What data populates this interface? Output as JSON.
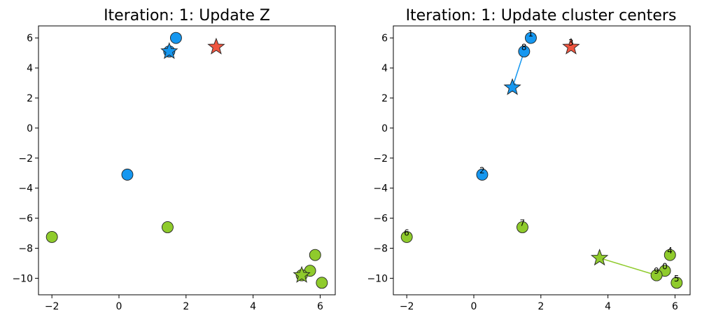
{
  "colors": {
    "blue": "#1597f0",
    "red": "#f0553f",
    "green": "#8fcb2c",
    "edge": "#222222"
  },
  "chart_data": [
    {
      "type": "scatter",
      "title": "Iteration: 1: Update Z",
      "xlim": [
        -2.4,
        6.45
      ],
      "ylim": [
        -11.1,
        6.8
      ],
      "xticks": [
        -2,
        0,
        2,
        4,
        6
      ],
      "yticks": [
        6,
        4,
        2,
        0,
        -2,
        -4,
        -6,
        -8,
        -10
      ],
      "points": [
        {
          "x": 1.7,
          "y": 6.0,
          "cluster": "blue"
        },
        {
          "x": 1.5,
          "y": 5.1,
          "cluster": "blue"
        },
        {
          "x": 0.25,
          "y": -3.1,
          "cluster": "blue"
        },
        {
          "x": 1.45,
          "y": -6.6,
          "cluster": "green"
        },
        {
          "x": -2.0,
          "y": -7.25,
          "cluster": "green"
        },
        {
          "x": 5.85,
          "y": -8.45,
          "cluster": "green"
        },
        {
          "x": 5.7,
          "y": -9.5,
          "cluster": "green"
        },
        {
          "x": 5.45,
          "y": -9.8,
          "cluster": "green"
        },
        {
          "x": 6.05,
          "y": -10.3,
          "cluster": "green"
        }
      ],
      "centers": [
        {
          "x": 1.5,
          "y": 5.1,
          "cluster": "blue"
        },
        {
          "x": 2.9,
          "y": 5.4,
          "cluster": "red"
        },
        {
          "x": 5.45,
          "y": -9.8,
          "cluster": "green"
        }
      ],
      "arrows": []
    },
    {
      "type": "scatter",
      "title": "Iteration: 1: Update cluster centers",
      "xlim": [
        -2.4,
        6.45
      ],
      "ylim": [
        -11.1,
        6.8
      ],
      "xticks": [
        -2,
        0,
        2,
        4,
        6
      ],
      "yticks": [
        6,
        4,
        2,
        0,
        -2,
        -4,
        -6,
        -8,
        -10
      ],
      "points": [
        {
          "x": 1.7,
          "y": 6.0,
          "cluster": "blue",
          "label": "1"
        },
        {
          "x": 1.5,
          "y": 5.1,
          "cluster": "blue",
          "label": "8"
        },
        {
          "x": 0.25,
          "y": -3.1,
          "cluster": "blue",
          "label": "2"
        },
        {
          "x": 1.45,
          "y": -6.6,
          "cluster": "green",
          "label": "7"
        },
        {
          "x": -2.0,
          "y": -7.25,
          "cluster": "green",
          "label": "6"
        },
        {
          "x": 5.85,
          "y": -8.45,
          "cluster": "green",
          "label": "4"
        },
        {
          "x": 5.7,
          "y": -9.5,
          "cluster": "green",
          "label": "0"
        },
        {
          "x": 5.45,
          "y": -9.8,
          "cluster": "green",
          "label": "9"
        },
        {
          "x": 6.05,
          "y": -10.3,
          "cluster": "green",
          "label": "5"
        }
      ],
      "centers": [
        {
          "x": 1.15,
          "y": 2.7,
          "cluster": "blue"
        },
        {
          "x": 2.9,
          "y": 5.4,
          "cluster": "red",
          "label": "3"
        },
        {
          "x": 3.75,
          "y": -8.65,
          "cluster": "green"
        }
      ],
      "arrows": [
        {
          "from": [
            1.5,
            5.1
          ],
          "to": [
            1.15,
            2.7
          ],
          "cluster": "blue"
        },
        {
          "from": [
            5.45,
            -9.8
          ],
          "to": [
            3.75,
            -8.65
          ],
          "cluster": "green"
        }
      ]
    }
  ]
}
